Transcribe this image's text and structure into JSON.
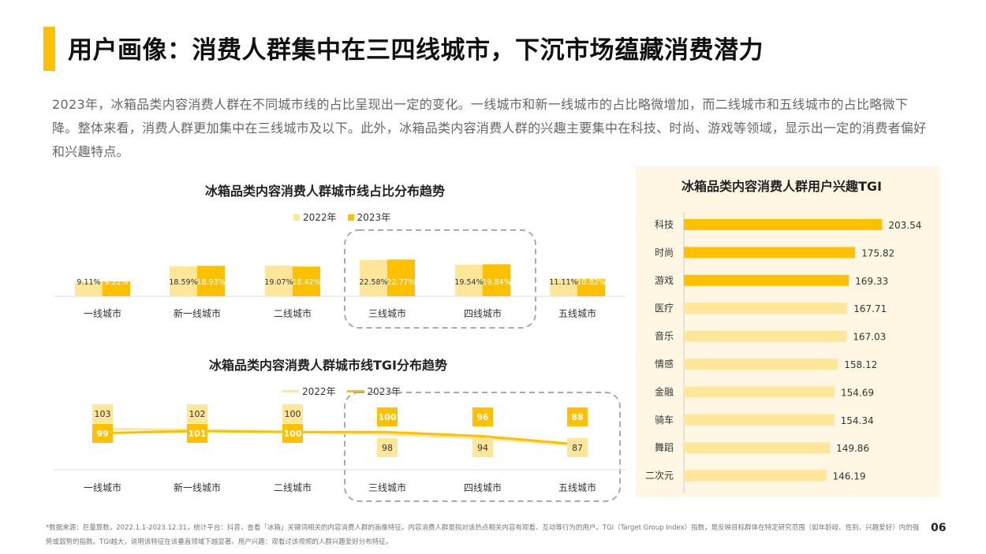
{
  "page_title": "用户画像：消费人群集中在三四线城市，下沉市场蕴藏消费潜力",
  "intro": "2023年，冰箱品类内容消费人群在不同城市线的占比呈现出一定的变化。一线城市和新一线城市的占比略微增加，而二线城市和五线城市的占比略微下降。整体来看，消费人群更加集中在三线城市及以下。此外，冰箱品类内容消费人群的兴趣主要集中在科技、时尚、游戏等领域，显示出一定的消费者偏好和兴趣特点。",
  "footnote": "*数据来源：巨量算数，2022.1.1-2023.12.31，统计平台：抖音，查看「冰箱」关键词相关的内容消费人群的画像特征。内容消费人群是指对该热点相关内容有观看、互动等行为的用户。TGI（Target Group Index）指数，是反映目标群体在特定研究范围（如年龄段、性别、兴趣爱好）内的强势或弱势的指数。TGI越大，说明该特征在该垂直领域下越显著。用户兴趣：观看过该视频的人群兴趣爱好分布特征。",
  "page_number": "06",
  "colors": {
    "accent": "#FFC000",
    "light": "#FFE699",
    "panel": "#FFF7E3"
  },
  "chart_data": [
    {
      "type": "bar",
      "title": "冰箱品类内容消费人群城市线占比分布趋势",
      "categories": [
        "一线城市",
        "新一线城市",
        "二线城市",
        "三线城市",
        "四线城市",
        "五线城市"
      ],
      "series": [
        {
          "name": "2022年",
          "values": [
            9.11,
            18.59,
            19.07,
            22.58,
            19.54,
            11.11
          ],
          "labels": [
            "9.11%",
            "18.59%",
            "19.07%",
            "22.58%",
            "19.54%",
            "11.11%"
          ],
          "color": "#FFE699"
        },
        {
          "name": "2023年",
          "values": [
            9.22,
            18.93,
            18.42,
            22.77,
            19.84,
            10.82
          ],
          "labels": [
            "9.22%",
            "18.93%",
            "18.42%",
            "22.77%",
            "19.84%",
            "10.82%"
          ],
          "color": "#FFC000"
        }
      ],
      "highlighted_categories": [
        "三线城市",
        "四线城市"
      ]
    },
    {
      "type": "line",
      "title": "冰箱品类内容消费人群城市线TGI分布趋势",
      "categories": [
        "一线城市",
        "新一线城市",
        "二线城市",
        "三线城市",
        "四线城市",
        "五线城市"
      ],
      "series": [
        {
          "name": "2022年",
          "values": [
            103,
            102,
            100,
            98,
            94,
            87
          ],
          "color": "#FFE699"
        },
        {
          "name": "2023年",
          "values": [
            99,
            101,
            100,
            100,
            96,
            88
          ],
          "color": "#FFC000"
        }
      ],
      "highlighted_categories": [
        "三线城市",
        "四线城市",
        "五线城市"
      ]
    },
    {
      "type": "bar",
      "orientation": "horizontal",
      "title": "冰箱品类内容消费人群用户兴趣TGI",
      "categories": [
        "科技",
        "时尚",
        "游戏",
        "医疗",
        "音乐",
        "情感",
        "金融",
        "骑车",
        "舞蹈",
        "二次元"
      ],
      "values": [
        203.54,
        175.82,
        169.33,
        167.71,
        167.03,
        158.12,
        154.69,
        154.34,
        149.86,
        146.19
      ],
      "labels": [
        "203.54",
        "175.82",
        "169.33",
        "167.71",
        "167.03",
        "158.12",
        "154.69",
        "154.34",
        "149.86",
        "146.19"
      ],
      "highlight_count": 3,
      "colors": {
        "highlight": "#FFC000",
        "normal": "#FFE699"
      }
    }
  ]
}
